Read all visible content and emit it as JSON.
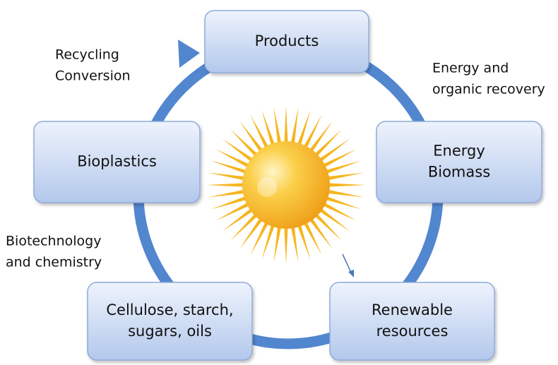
{
  "nodes": [
    {
      "lines": [
        "Products"
      ]
    },
    {
      "lines": [
        "Energy",
        "Biomass"
      ]
    },
    {
      "lines": [
        "Renewable",
        "resources"
      ]
    },
    {
      "lines": [
        "Cellulose, starch,",
        "sugars, oils"
      ]
    },
    {
      "lines": [
        "Bioplastics"
      ]
    }
  ],
  "annotations": [
    {
      "lines": [
        "Recycling",
        "Conversion"
      ]
    },
    {
      "lines": [
        "Energy and",
        "organic recovery"
      ]
    },
    {
      "lines": [
        "Biotechnology",
        "and chemistry"
      ]
    }
  ]
}
